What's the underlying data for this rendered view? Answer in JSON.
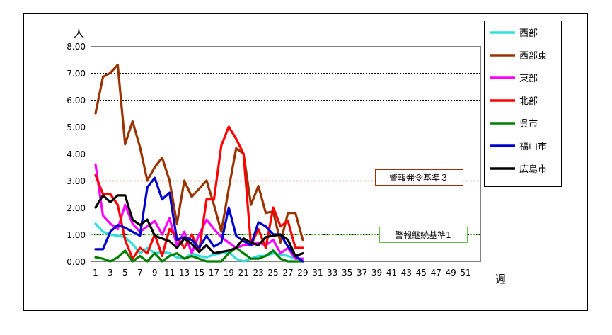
{
  "chart_data": {
    "type": "line",
    "y_unit_label": "人",
    "x_unit_label": "週",
    "ylim": [
      0,
      8
    ],
    "y_ticks": [
      "0.00",
      "1.00",
      "2.00",
      "3.00",
      "4.00",
      "5.00",
      "6.00",
      "7.00",
      "8.00"
    ],
    "xlim": [
      1,
      53
    ],
    "x_ticks": [
      "1",
      "3",
      "5",
      "7",
      "9",
      "11",
      "13",
      "15",
      "17",
      "19",
      "21",
      "23",
      "25",
      "27",
      "29",
      "31",
      "33",
      "35",
      "37",
      "39",
      "41",
      "43",
      "45",
      "47",
      "49",
      "51"
    ],
    "grid": "horizontal",
    "legend_position": "right",
    "x": [
      1,
      2,
      3,
      4,
      5,
      6,
      7,
      8,
      9,
      10,
      11,
      12,
      13,
      14,
      15,
      16,
      17,
      18,
      19,
      20,
      21,
      22,
      23,
      24,
      25,
      26,
      27,
      28,
      29
    ],
    "series": [
      {
        "name": "西部",
        "color": "#33dddd",
        "values": [
          1.4,
          1.1,
          1.0,
          0.95,
          0.9,
          0.65,
          0.3,
          0.5,
          0.3,
          0.35,
          0.3,
          0.15,
          0.1,
          0.3,
          0.2,
          0.15,
          0.25,
          0.3,
          0.35,
          0.1,
          0.0,
          0.1,
          0.2,
          0.2,
          0.3,
          0.25,
          0.2,
          0.1,
          0.1
        ]
      },
      {
        "name": "西部東",
        "color": "#993300",
        "values": [
          5.5,
          6.85,
          7.0,
          7.3,
          4.35,
          5.2,
          4.25,
          3.0,
          3.5,
          3.85,
          3.0,
          1.4,
          3.0,
          2.4,
          2.7,
          3.0,
          2.1,
          1.1,
          2.7,
          4.2,
          4.0,
          2.1,
          2.8,
          1.8,
          1.85,
          0.7,
          1.8,
          1.8,
          0.8
        ]
      },
      {
        "name": "東部",
        "color": "#ff00ff",
        "values": [
          3.6,
          1.7,
          1.4,
          1.2,
          2.1,
          1.4,
          1.1,
          1.3,
          1.5,
          1.0,
          1.6,
          0.6,
          1.1,
          0.3,
          1.0,
          1.55,
          1.2,
          0.9,
          0.7,
          0.5,
          0.6,
          0.6,
          0.7,
          0.6,
          0.8,
          0.3,
          0.5,
          0.1,
          0.1
        ]
      },
      {
        "name": "北部",
        "color": "#ff0000",
        "values": [
          3.2,
          2.5,
          2.5,
          2.1,
          0.8,
          0.1,
          0.5,
          0.3,
          1.0,
          0.2,
          1.2,
          0.9,
          0.5,
          1.0,
          0.4,
          2.3,
          2.3,
          4.3,
          5.0,
          4.55,
          4.0,
          0.6,
          1.2,
          0.5,
          2.0,
          1.3,
          1.5,
          0.5,
          0.5
        ]
      },
      {
        "name": "呉市",
        "color": "#008000",
        "values": [
          0.15,
          0.1,
          0.0,
          0.15,
          0.4,
          0.0,
          0.2,
          0.0,
          0.3,
          0.0,
          0.2,
          0.3,
          0.1,
          0.2,
          0.1,
          0.0,
          0.0,
          0.0,
          0.3,
          0.5,
          0.3,
          0.1,
          0.1,
          0.2,
          0.4,
          0.1,
          0.0,
          0.0,
          0.0
        ]
      },
      {
        "name": "福山市",
        "color": "#0000cc",
        "values": [
          0.45,
          0.45,
          1.1,
          1.35,
          1.25,
          1.1,
          0.95,
          2.75,
          3.1,
          2.3,
          2.55,
          0.8,
          0.9,
          0.8,
          0.5,
          0.95,
          0.55,
          0.7,
          2.0,
          0.95,
          0.75,
          0.6,
          1.45,
          1.3,
          1.0,
          1.0,
          0.55,
          0.2,
          0.0
        ]
      },
      {
        "name": "広島市",
        "color": "#000000",
        "values": [
          2.0,
          2.45,
          2.2,
          2.45,
          2.45,
          1.55,
          1.35,
          1.55,
          0.95,
          0.85,
          0.75,
          0.5,
          0.85,
          0.65,
          0.35,
          0.6,
          0.3,
          0.35,
          0.4,
          0.5,
          0.85,
          0.7,
          0.6,
          0.9,
          0.95,
          1.0,
          0.8,
          0.2,
          0.3
        ]
      }
    ],
    "threshold_lines": [
      {
        "label": "警報発令基準３",
        "value": 3.0,
        "color": "#993300",
        "box_border": "#993300"
      },
      {
        "label": "警報継続基準1",
        "value": 1.0,
        "color": "#66bb44",
        "box_border": "#66bb44"
      }
    ]
  }
}
